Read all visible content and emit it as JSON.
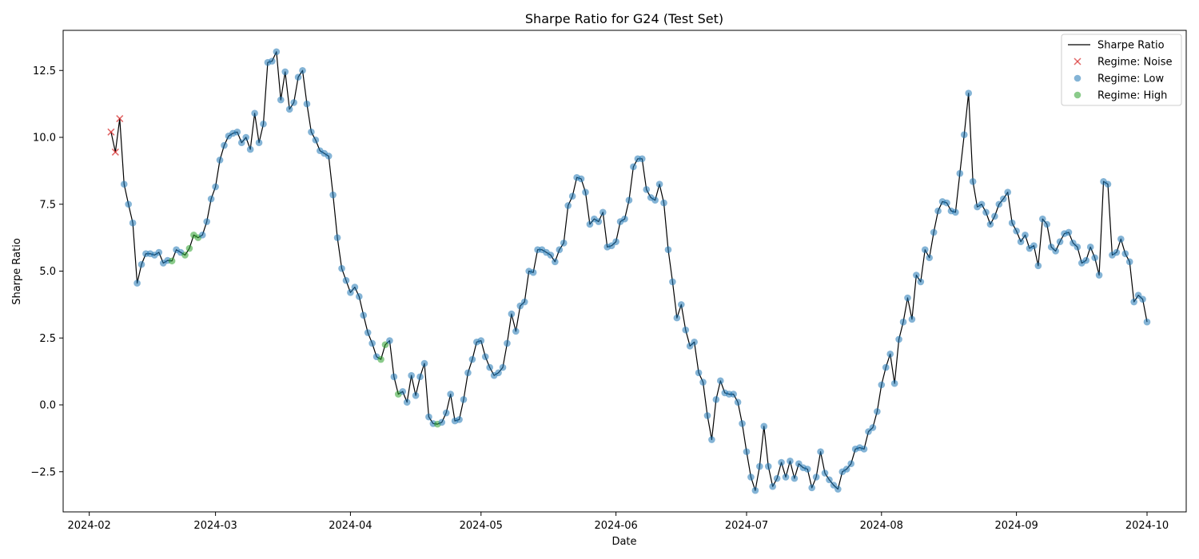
{
  "chart_data": {
    "type": "line",
    "title": "Sharpe Ratio  for G24 (Test Set)",
    "xlabel": "Date",
    "ylabel": "Sharpe Ratio",
    "xlim": [
      "2024-01-26",
      "2024-10-10"
    ],
    "ylim": [
      -4.0,
      14.0
    ],
    "grid": false,
    "legend_placement": "top-right",
    "x_ticks": [
      "2024-02-01",
      "2024-03-01",
      "2024-04-01",
      "2024-05-01",
      "2024-06-01",
      "2024-07-01",
      "2024-08-01",
      "2024-09-01",
      "2024-10-01"
    ],
    "x_tick_labels": [
      "2024-02",
      "2024-03",
      "2024-04",
      "2024-05",
      "2024-06",
      "2024-07",
      "2024-08",
      "2024-09",
      "2024-10"
    ],
    "y_ticks": [
      -2.5,
      0.0,
      2.5,
      5.0,
      7.5,
      10.0,
      12.5
    ],
    "y_tick_labels": [
      "−2.5",
      "0.0",
      "2.5",
      "5.0",
      "7.5",
      "10.0",
      "12.5"
    ],
    "line_series": {
      "name": "Sharpe Ratio",
      "color": "#000000"
    },
    "regimes": [
      {
        "name": "Regime: Noise",
        "marker": "x",
        "color": "#d62728"
      },
      {
        "name": "Regime: Low",
        "marker": "circle",
        "color": "#1f77b4"
      },
      {
        "name": "Regime: High",
        "marker": "circle",
        "color": "#2ca02c"
      }
    ],
    "points": [
      [
        "2024-02-06",
        10.2,
        0
      ],
      [
        "2024-02-07",
        9.45,
        0
      ],
      [
        "2024-02-08",
        10.7,
        0
      ],
      [
        "2024-02-09",
        8.25,
        1
      ],
      [
        "2024-02-10",
        7.5,
        1
      ],
      [
        "2024-02-11",
        6.8,
        1
      ],
      [
        "2024-02-12",
        4.55,
        1
      ],
      [
        "2024-02-13",
        5.25,
        1
      ],
      [
        "2024-02-14",
        5.65,
        1
      ],
      [
        "2024-02-15",
        5.65,
        1
      ],
      [
        "2024-02-16",
        5.6,
        1
      ],
      [
        "2024-02-17",
        5.7,
        1
      ],
      [
        "2024-02-18",
        5.3,
        1
      ],
      [
        "2024-02-19",
        5.4,
        1
      ],
      [
        "2024-02-20",
        5.38,
        2
      ],
      [
        "2024-02-21",
        5.8,
        1
      ],
      [
        "2024-02-22",
        5.7,
        1
      ],
      [
        "2024-02-23",
        5.6,
        2
      ],
      [
        "2024-02-24",
        5.85,
        2
      ],
      [
        "2024-02-25",
        6.35,
        2
      ],
      [
        "2024-02-26",
        6.25,
        2
      ],
      [
        "2024-02-27",
        6.35,
        1
      ],
      [
        "2024-02-28",
        6.85,
        1
      ],
      [
        "2024-02-29",
        7.7,
        1
      ],
      [
        "2024-03-01",
        8.15,
        1
      ],
      [
        "2024-03-02",
        9.15,
        1
      ],
      [
        "2024-03-03",
        9.7,
        1
      ],
      [
        "2024-03-04",
        10.05,
        1
      ],
      [
        "2024-03-05",
        10.15,
        1
      ],
      [
        "2024-03-06",
        10.2,
        1
      ],
      [
        "2024-03-07",
        9.8,
        1
      ],
      [
        "2024-03-08",
        10.0,
        1
      ],
      [
        "2024-03-09",
        9.55,
        1
      ],
      [
        "2024-03-10",
        10.9,
        1
      ],
      [
        "2024-03-11",
        9.8,
        1
      ],
      [
        "2024-03-12",
        10.5,
        1
      ],
      [
        "2024-03-13",
        12.8,
        1
      ],
      [
        "2024-03-14",
        12.85,
        1
      ],
      [
        "2024-03-15",
        13.2,
        1
      ],
      [
        "2024-03-16",
        11.4,
        1
      ],
      [
        "2024-03-17",
        12.45,
        1
      ],
      [
        "2024-03-18",
        11.05,
        1
      ],
      [
        "2024-03-19",
        11.3,
        1
      ],
      [
        "2024-03-20",
        12.25,
        1
      ],
      [
        "2024-03-21",
        12.5,
        1
      ],
      [
        "2024-03-22",
        11.25,
        1
      ],
      [
        "2024-03-23",
        10.2,
        1
      ],
      [
        "2024-03-24",
        9.9,
        1
      ],
      [
        "2024-03-25",
        9.5,
        1
      ],
      [
        "2024-03-26",
        9.4,
        1
      ],
      [
        "2024-03-27",
        9.3,
        1
      ],
      [
        "2024-03-28",
        7.85,
        1
      ],
      [
        "2024-03-29",
        6.25,
        1
      ],
      [
        "2024-03-30",
        5.1,
        1
      ],
      [
        "2024-03-31",
        4.65,
        1
      ],
      [
        "2024-04-01",
        4.2,
        1
      ],
      [
        "2024-04-02",
        4.4,
        1
      ],
      [
        "2024-04-03",
        4.05,
        1
      ],
      [
        "2024-04-04",
        3.35,
        1
      ],
      [
        "2024-04-05",
        2.7,
        1
      ],
      [
        "2024-04-06",
        2.3,
        1
      ],
      [
        "2024-04-07",
        1.8,
        1
      ],
      [
        "2024-04-08",
        1.7,
        2
      ],
      [
        "2024-04-09",
        2.25,
        2
      ],
      [
        "2024-04-10",
        2.4,
        1
      ],
      [
        "2024-04-11",
        1.05,
        1
      ],
      [
        "2024-04-12",
        0.4,
        2
      ],
      [
        "2024-04-13",
        0.5,
        1
      ],
      [
        "2024-04-14",
        0.1,
        1
      ],
      [
        "2024-04-15",
        1.1,
        1
      ],
      [
        "2024-04-16",
        0.35,
        1
      ],
      [
        "2024-04-17",
        1.05,
        1
      ],
      [
        "2024-04-18",
        1.55,
        1
      ],
      [
        "2024-04-19",
        -0.45,
        1
      ],
      [
        "2024-04-20",
        -0.7,
        1
      ],
      [
        "2024-04-21",
        -0.72,
        2
      ],
      [
        "2024-04-22",
        -0.65,
        1
      ],
      [
        "2024-04-23",
        -0.3,
        1
      ],
      [
        "2024-04-24",
        0.4,
        1
      ],
      [
        "2024-04-25",
        -0.6,
        1
      ],
      [
        "2024-04-26",
        -0.55,
        1
      ],
      [
        "2024-04-27",
        0.2,
        1
      ],
      [
        "2024-04-28",
        1.2,
        1
      ],
      [
        "2024-04-29",
        1.7,
        1
      ],
      [
        "2024-04-30",
        2.35,
        1
      ],
      [
        "2024-05-01",
        2.4,
        1
      ],
      [
        "2024-05-02",
        1.8,
        1
      ],
      [
        "2024-05-03",
        1.4,
        1
      ],
      [
        "2024-05-04",
        1.1,
        1
      ],
      [
        "2024-05-05",
        1.2,
        1
      ],
      [
        "2024-05-06",
        1.4,
        1
      ],
      [
        "2024-05-07",
        2.3,
        1
      ],
      [
        "2024-05-08",
        3.4,
        1
      ],
      [
        "2024-05-09",
        2.75,
        1
      ],
      [
        "2024-05-10",
        3.7,
        1
      ],
      [
        "2024-05-11",
        3.85,
        1
      ],
      [
        "2024-05-12",
        5.0,
        1
      ],
      [
        "2024-05-13",
        4.95,
        1
      ],
      [
        "2024-05-14",
        5.8,
        1
      ],
      [
        "2024-05-15",
        5.8,
        1
      ],
      [
        "2024-05-16",
        5.7,
        1
      ],
      [
        "2024-05-17",
        5.6,
        1
      ],
      [
        "2024-05-18",
        5.35,
        1
      ],
      [
        "2024-05-19",
        5.8,
        1
      ],
      [
        "2024-05-20",
        6.05,
        1
      ],
      [
        "2024-05-21",
        7.45,
        1
      ],
      [
        "2024-05-22",
        7.8,
        1
      ],
      [
        "2024-05-23",
        8.5,
        1
      ],
      [
        "2024-05-24",
        8.45,
        1
      ],
      [
        "2024-05-25",
        7.95,
        1
      ],
      [
        "2024-05-26",
        6.75,
        1
      ],
      [
        "2024-05-27",
        6.95,
        1
      ],
      [
        "2024-05-28",
        6.85,
        1
      ],
      [
        "2024-05-29",
        7.2,
        1
      ],
      [
        "2024-05-30",
        5.9,
        1
      ],
      [
        "2024-05-31",
        5.95,
        1
      ],
      [
        "2024-06-01",
        6.1,
        1
      ],
      [
        "2024-06-02",
        6.85,
        1
      ],
      [
        "2024-06-03",
        6.95,
        1
      ],
      [
        "2024-06-04",
        7.65,
        1
      ],
      [
        "2024-06-05",
        8.9,
        1
      ],
      [
        "2024-06-06",
        9.2,
        1
      ],
      [
        "2024-06-07",
        9.2,
        1
      ],
      [
        "2024-06-08",
        8.05,
        1
      ],
      [
        "2024-06-09",
        7.75,
        1
      ],
      [
        "2024-06-10",
        7.65,
        1
      ],
      [
        "2024-06-11",
        8.25,
        1
      ],
      [
        "2024-06-12",
        7.55,
        1
      ],
      [
        "2024-06-13",
        5.8,
        1
      ],
      [
        "2024-06-14",
        4.6,
        1
      ],
      [
        "2024-06-15",
        3.25,
        1
      ],
      [
        "2024-06-16",
        3.75,
        1
      ],
      [
        "2024-06-17",
        2.8,
        1
      ],
      [
        "2024-06-18",
        2.2,
        1
      ],
      [
        "2024-06-19",
        2.35,
        1
      ],
      [
        "2024-06-20",
        1.2,
        1
      ],
      [
        "2024-06-21",
        0.85,
        1
      ],
      [
        "2024-06-22",
        -0.4,
        1
      ],
      [
        "2024-06-23",
        -1.3,
        1
      ],
      [
        "2024-06-24",
        0.2,
        1
      ],
      [
        "2024-06-25",
        0.9,
        1
      ],
      [
        "2024-06-26",
        0.45,
        1
      ],
      [
        "2024-06-27",
        0.4,
        1
      ],
      [
        "2024-06-28",
        0.4,
        1
      ],
      [
        "2024-06-29",
        0.1,
        1
      ],
      [
        "2024-06-30",
        -0.7,
        1
      ],
      [
        "2024-07-01",
        -1.75,
        1
      ],
      [
        "2024-07-02",
        -2.7,
        1
      ],
      [
        "2024-07-03",
        -3.2,
        1
      ],
      [
        "2024-07-04",
        -2.3,
        1
      ],
      [
        "2024-07-05",
        -0.8,
        1
      ],
      [
        "2024-07-06",
        -2.3,
        1
      ],
      [
        "2024-07-07",
        -3.05,
        1
      ],
      [
        "2024-07-08",
        -2.75,
        1
      ],
      [
        "2024-07-09",
        -2.15,
        1
      ],
      [
        "2024-07-10",
        -2.7,
        1
      ],
      [
        "2024-07-11",
        -2.1,
        1
      ],
      [
        "2024-07-12",
        -2.75,
        1
      ],
      [
        "2024-07-13",
        -2.2,
        1
      ],
      [
        "2024-07-14",
        -2.35,
        1
      ],
      [
        "2024-07-15",
        -2.4,
        1
      ],
      [
        "2024-07-16",
        -3.1,
        1
      ],
      [
        "2024-07-17",
        -2.7,
        1
      ],
      [
        "2024-07-18",
        -1.75,
        1
      ],
      [
        "2024-07-19",
        -2.55,
        1
      ],
      [
        "2024-07-20",
        -2.8,
        1
      ],
      [
        "2024-07-21",
        -3.0,
        1
      ],
      [
        "2024-07-22",
        -3.15,
        1
      ],
      [
        "2024-07-23",
        -2.5,
        1
      ],
      [
        "2024-07-24",
        -2.4,
        1
      ],
      [
        "2024-07-25",
        -2.2,
        1
      ],
      [
        "2024-07-26",
        -1.65,
        1
      ],
      [
        "2024-07-27",
        -1.6,
        1
      ],
      [
        "2024-07-28",
        -1.65,
        1
      ],
      [
        "2024-07-29",
        -1.0,
        1
      ],
      [
        "2024-07-30",
        -0.85,
        1
      ],
      [
        "2024-07-31",
        -0.25,
        1
      ],
      [
        "2024-08-01",
        0.75,
        1
      ],
      [
        "2024-08-02",
        1.4,
        1
      ],
      [
        "2024-08-03",
        1.9,
        1
      ],
      [
        "2024-08-04",
        0.8,
        1
      ],
      [
        "2024-08-05",
        2.45,
        1
      ],
      [
        "2024-08-06",
        3.1,
        1
      ],
      [
        "2024-08-07",
        4.0,
        1
      ],
      [
        "2024-08-08",
        3.2,
        1
      ],
      [
        "2024-08-09",
        4.85,
        1
      ],
      [
        "2024-08-10",
        4.6,
        1
      ],
      [
        "2024-08-11",
        5.8,
        1
      ],
      [
        "2024-08-12",
        5.5,
        1
      ],
      [
        "2024-08-13",
        6.45,
        1
      ],
      [
        "2024-08-14",
        7.25,
        1
      ],
      [
        "2024-08-15",
        7.6,
        1
      ],
      [
        "2024-08-16",
        7.55,
        1
      ],
      [
        "2024-08-17",
        7.25,
        1
      ],
      [
        "2024-08-18",
        7.2,
        1
      ],
      [
        "2024-08-19",
        8.65,
        1
      ],
      [
        "2024-08-20",
        10.1,
        1
      ],
      [
        "2024-08-21",
        11.65,
        1
      ],
      [
        "2024-08-22",
        8.35,
        1
      ],
      [
        "2024-08-23",
        7.4,
        1
      ],
      [
        "2024-08-24",
        7.5,
        1
      ],
      [
        "2024-08-25",
        7.2,
        1
      ],
      [
        "2024-08-26",
        6.75,
        1
      ],
      [
        "2024-08-27",
        7.05,
        1
      ],
      [
        "2024-08-28",
        7.5,
        1
      ],
      [
        "2024-08-29",
        7.7,
        1
      ],
      [
        "2024-08-30",
        7.95,
        1
      ],
      [
        "2024-08-31",
        6.8,
        1
      ],
      [
        "2024-09-01",
        6.5,
        1
      ],
      [
        "2024-09-02",
        6.1,
        1
      ],
      [
        "2024-09-03",
        6.35,
        1
      ],
      [
        "2024-09-04",
        5.85,
        1
      ],
      [
        "2024-09-05",
        5.95,
        1
      ],
      [
        "2024-09-06",
        5.2,
        1
      ],
      [
        "2024-09-07",
        6.95,
        1
      ],
      [
        "2024-09-08",
        6.75,
        1
      ],
      [
        "2024-09-09",
        5.9,
        1
      ],
      [
        "2024-09-10",
        5.75,
        1
      ],
      [
        "2024-09-11",
        6.1,
        1
      ],
      [
        "2024-09-12",
        6.4,
        1
      ],
      [
        "2024-09-13",
        6.45,
        1
      ],
      [
        "2024-09-14",
        6.05,
        1
      ],
      [
        "2024-09-15",
        5.9,
        1
      ],
      [
        "2024-09-16",
        5.3,
        1
      ],
      [
        "2024-09-17",
        5.4,
        1
      ],
      [
        "2024-09-18",
        5.9,
        1
      ],
      [
        "2024-09-19",
        5.5,
        1
      ],
      [
        "2024-09-20",
        4.85,
        1
      ],
      [
        "2024-09-21",
        8.35,
        1
      ],
      [
        "2024-09-22",
        8.25,
        1
      ],
      [
        "2024-09-23",
        5.6,
        1
      ],
      [
        "2024-09-24",
        5.7,
        1
      ],
      [
        "2024-09-25",
        6.2,
        1
      ],
      [
        "2024-09-26",
        5.65,
        1
      ],
      [
        "2024-09-27",
        5.35,
        1
      ],
      [
        "2024-09-28",
        3.85,
        1
      ],
      [
        "2024-09-29",
        4.1,
        1
      ],
      [
        "2024-09-30",
        3.95,
        1
      ],
      [
        "2024-10-01",
        3.1,
        1
      ]
    ]
  }
}
